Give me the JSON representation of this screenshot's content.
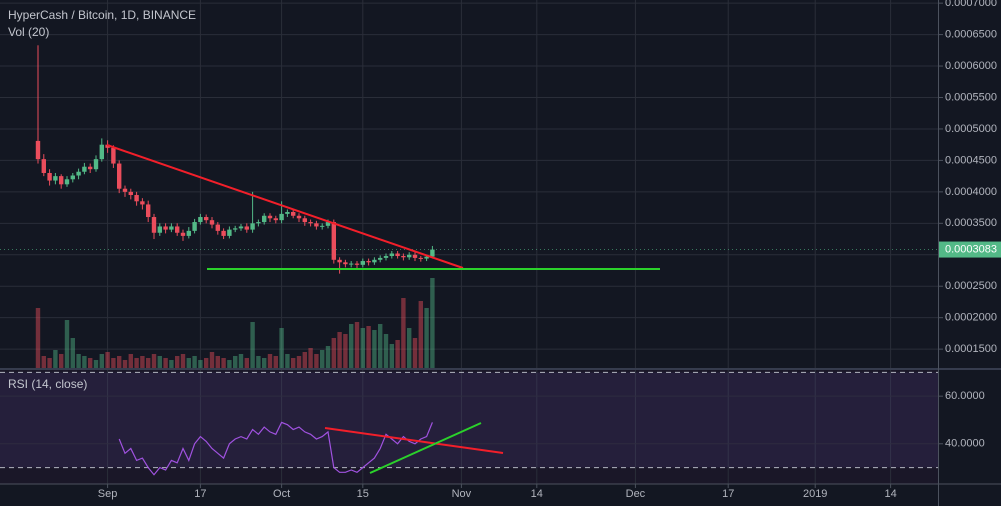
{
  "chart_data": {
    "type": "candlestick",
    "title": "HyperCash / Bitcoin, 1D, BINANCE",
    "volume_label": "Vol (20)",
    "up_color": "#53b987",
    "down_color": "#eb4d5c",
    "grid": true,
    "open": [
      0.000481,
      0.000452,
      0.00043,
      0.000418,
      0.000425,
      0.000412,
      0.00042,
      0.000426,
      0.000432,
      0.00044,
      0.000436,
      0.000452,
      0.000475,
      0.00047,
      0.000445,
      0.000405,
      0.0004,
      0.000395,
      0.000385,
      0.00038,
      0.00036,
      0.000335,
      0.000345,
      0.00034,
      0.000345,
      0.000335,
      0.00033,
      0.000338,
      0.000352,
      0.00036,
      0.000355,
      0.000348,
      0.000338,
      0.00033,
      0.00034,
      0.000342,
      0.000345,
      0.00034,
      0.00035,
      0.000352,
      0.000362,
      0.000358,
      0.000355,
      0.000365,
      0.000368,
      0.000362,
      0.000358,
      0.000352,
      0.00035,
      0.000345,
      0.000346,
      0.000352,
      0.000292,
      0.000288,
      0.000285,
      0.000286,
      0.000284,
      0.00029,
      0.000288,
      0.000292,
      0.000295,
      0.000298,
      0.000302,
      0.000298,
      0.000296,
      0.0003,
      0.000295,
      0.000294,
      0.000297
    ],
    "high": [
      0.000633,
      0.00046,
      0.000436,
      0.00043,
      0.000428,
      0.000425,
      0.00043,
      0.000437,
      0.000446,
      0.000445,
      0.000458,
      0.000485,
      0.000482,
      0.000474,
      0.00045,
      0.00041,
      0.000405,
      0.0004,
      0.00039,
      0.000386,
      0.000365,
      0.00035,
      0.00035,
      0.00035,
      0.00035,
      0.00034,
      0.000344,
      0.000357,
      0.000365,
      0.000364,
      0.00036,
      0.000352,
      0.000342,
      0.000345,
      0.000346,
      0.000349,
      0.00035,
      0.0004,
      0.000356,
      0.000366,
      0.000366,
      0.000362,
      0.000385,
      0.000372,
      0.000372,
      0.000366,
      0.000362,
      0.000356,
      0.000354,
      0.00035,
      0.000356,
      0.000356,
      0.000296,
      0.000292,
      0.00029,
      0.00029,
      0.000294,
      0.000294,
      0.000296,
      0.000299,
      0.000302,
      0.000306,
      0.000306,
      0.000302,
      0.000304,
      0.000304,
      0.000298,
      0.0003,
      0.000314
    ],
    "low": [
      0.000445,
      0.000425,
      0.00041,
      0.000412,
      0.000405,
      0.000408,
      0.000415,
      0.00042,
      0.000428,
      0.00043,
      0.000432,
      0.000448,
      0.000462,
      0.000438,
      0.000398,
      0.000392,
      0.000388,
      0.000378,
      0.000372,
      0.000352,
      0.000325,
      0.00033,
      0.000334,
      0.000336,
      0.00033,
      0.000322,
      0.000326,
      0.000334,
      0.000348,
      0.00035,
      0.000342,
      0.000332,
      0.000325,
      0.000326,
      0.000336,
      0.000338,
      0.000335,
      0.000335,
      0.000345,
      0.000348,
      0.000352,
      0.00035,
      0.00035,
      0.00036,
      0.000358,
      0.000352,
      0.000346,
      0.000345,
      0.00034,
      0.00034,
      0.000342,
      0.000286,
      0.00027,
      0.00028,
      0.00028,
      0.000279,
      0.00028,
      0.000283,
      0.000284,
      0.000288,
      0.000291,
      0.000294,
      0.000294,
      0.000291,
      0.000292,
      0.00029,
      0.000289,
      0.00029,
      0.000294
    ],
    "close": [
      0.000452,
      0.00043,
      0.000418,
      0.000425,
      0.000412,
      0.00042,
      0.000426,
      0.000432,
      0.00044,
      0.000436,
      0.000452,
      0.000475,
      0.00047,
      0.000445,
      0.000405,
      0.0004,
      0.000395,
      0.000385,
      0.00038,
      0.00036,
      0.000335,
      0.000345,
      0.00034,
      0.000345,
      0.000335,
      0.00033,
      0.000338,
      0.000352,
      0.00036,
      0.000355,
      0.000348,
      0.000338,
      0.00033,
      0.00034,
      0.000342,
      0.000345,
      0.00034,
      0.00035,
      0.000352,
      0.000362,
      0.000358,
      0.000355,
      0.000365,
      0.000368,
      0.000362,
      0.000358,
      0.000352,
      0.00035,
      0.000345,
      0.000346,
      0.000352,
      0.000292,
      0.000288,
      0.000285,
      0.000286,
      0.000284,
      0.00029,
      0.000288,
      0.000292,
      0.000295,
      0.000298,
      0.000302,
      0.000298,
      0.000296,
      0.0003,
      0.000295,
      0.000294,
      0.000297,
      0.0003083
    ],
    "volume": [
      60,
      12,
      10,
      18,
      14,
      48,
      30,
      14,
      12,
      10,
      8,
      14,
      16,
      10,
      12,
      8,
      14,
      10,
      12,
      10,
      14,
      12,
      10,
      8,
      12,
      14,
      10,
      12,
      8,
      10,
      16,
      12,
      10,
      8,
      12,
      14,
      10,
      46,
      12,
      10,
      14,
      12,
      40,
      14,
      10,
      12,
      16,
      20,
      14,
      18,
      22,
      30,
      36,
      34,
      44,
      46,
      40,
      42,
      38,
      44,
      34,
      24,
      28,
      70,
      40,
      30,
      67,
      60,
      90
    ],
    "ylim": [
      0.00012,
      0.000705
    ],
    "yticks": [
      {
        "value": 0.0007,
        "label": "0.0007000"
      },
      {
        "value": 0.00065,
        "label": "0.0006500"
      },
      {
        "value": 0.0006,
        "label": "0.0006000"
      },
      {
        "value": 0.00055,
        "label": "0.0005500"
      },
      {
        "value": 0.0005,
        "label": "0.0005000"
      },
      {
        "value": 0.00045,
        "label": "0.0004500"
      },
      {
        "value": 0.0004,
        "label": "0.0004000"
      },
      {
        "value": 0.00035,
        "label": "0.0003500"
      },
      {
        "value": 0.0003,
        "label": "0.0003000"
      },
      {
        "value": 0.00025,
        "label": "0.0002500"
      },
      {
        "value": 0.0002,
        "label": "0.0002000"
      },
      {
        "value": 0.00015,
        "label": "0.0001500"
      }
    ],
    "xlim": [
      -6.55,
      155.17
    ],
    "xticks": [
      {
        "value": 12,
        "label": "Sep"
      },
      {
        "value": 28,
        "label": "17"
      },
      {
        "value": 42,
        "label": "Oct"
      },
      {
        "value": 56,
        "label": "15"
      },
      {
        "value": 73,
        "label": "Nov"
      },
      {
        "value": 86,
        "label": "14"
      },
      {
        "value": 103,
        "label": "Dec"
      },
      {
        "value": 119,
        "label": "17"
      },
      {
        "value": 134,
        "label": "2019"
      },
      {
        "value": 147,
        "label": "14"
      }
    ],
    "last_price": 0.0003083,
    "rsi": {
      "title": "RSI (14, close)",
      "color": "#a052e0",
      "values": [
        null,
        null,
        null,
        null,
        null,
        null,
        null,
        null,
        null,
        null,
        null,
        null,
        null,
        null,
        42,
        36,
        38,
        33,
        34,
        30,
        27,
        30,
        29,
        33,
        32,
        38,
        33,
        40,
        43,
        41,
        38,
        36,
        34,
        40,
        42,
        43,
        42,
        46,
        44,
        47,
        45,
        44,
        49,
        48,
        46,
        47,
        45,
        44,
        42,
        43,
        45,
        30,
        28,
        28,
        29,
        28,
        30,
        32,
        34,
        38,
        44,
        42,
        40,
        43,
        41,
        40,
        42,
        43,
        49
      ],
      "bands": [
        30,
        70
      ],
      "ylim": [
        23.1,
        71
      ],
      "yticks": [
        {
          "value": 60,
          "label": "60.0000"
        },
        {
          "value": 40,
          "label": "40.0000"
        }
      ]
    }
  }
}
